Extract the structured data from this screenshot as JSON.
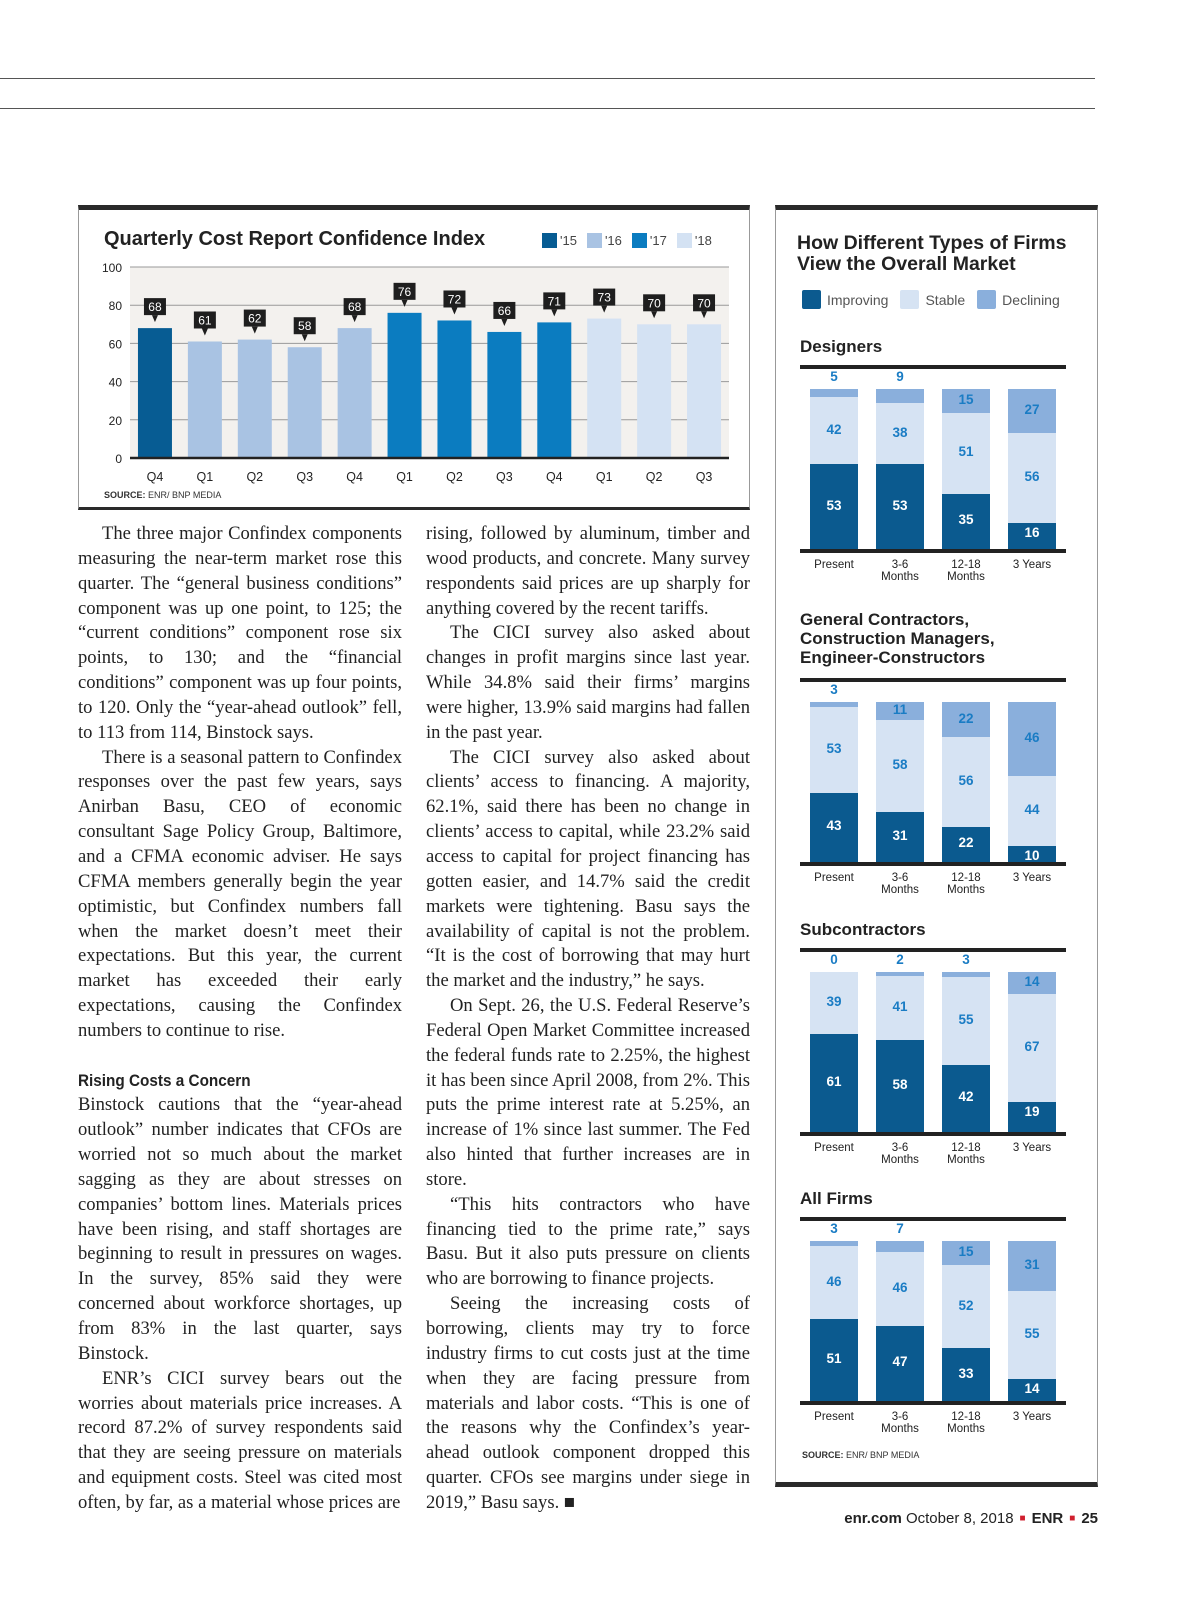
{
  "main_chart": {
    "title": "Quarterly Cost Report Confidence Index",
    "legend": [
      {
        "label": "'15",
        "color": "#075c93"
      },
      {
        "label": "'16",
        "color": "#a9c3e3"
      },
      {
        "label": "'17",
        "color": "#0b7cc0"
      },
      {
        "label": "'18",
        "color": "#d4e2f3"
      }
    ],
    "source_label": "SOURCE:",
    "source": "ENR/ BNP MEDIA"
  },
  "chart_data": [
    {
      "type": "bar",
      "title": "Quarterly Cost Report Confidence Index",
      "categories": [
        "Q4",
        "Q1",
        "Q2",
        "Q3",
        "Q4",
        "Q1",
        "Q2",
        "Q3",
        "Q4",
        "Q1",
        "Q2",
        "Q3"
      ],
      "years": [
        "'15",
        "'16",
        "'16",
        "'16",
        "'16",
        "'17",
        "'17",
        "'17",
        "'17",
        "'18",
        "'18",
        "'18"
      ],
      "values": [
        68,
        61,
        62,
        58,
        68,
        76,
        72,
        66,
        71,
        73,
        70,
        70
      ],
      "ylim": [
        0,
        100
      ],
      "yticks": [
        0,
        20,
        40,
        60,
        80,
        100
      ],
      "grid": true,
      "legend_position": "top-right"
    },
    {
      "type": "stacked-bar",
      "title": "How Different Types of Firms View the Overall Market",
      "categories": [
        "Present",
        "3-6 Months",
        "12-18 Months",
        "3 Years"
      ],
      "series_names": [
        "Improving",
        "Stable",
        "Declining"
      ],
      "colors": {
        "Improving": "#0b5a8f",
        "Stable": "#d6e3f3",
        "Declining": "#8aafdc"
      },
      "groups": [
        {
          "name": "Designers",
          "improving": [
            53,
            53,
            35,
            16
          ],
          "stable": [
            42,
            38,
            51,
            56
          ],
          "declining": [
            5,
            9,
            15,
            27
          ]
        },
        {
          "name": "General Contractors, Construction Managers, Engineer-Constructors",
          "improving": [
            43,
            31,
            22,
            10
          ],
          "stable": [
            53,
            58,
            56,
            44
          ],
          "declining": [
            3,
            11,
            22,
            46
          ]
        },
        {
          "name": "Subcontractors",
          "improving": [
            61,
            58,
            42,
            19
          ],
          "stable": [
            39,
            41,
            55,
            67
          ],
          "declining": [
            0,
            2,
            3,
            14
          ]
        },
        {
          "name": "All Firms",
          "improving": [
            51,
            47,
            33,
            14
          ],
          "stable": [
            46,
            46,
            52,
            55
          ],
          "declining": [
            3,
            7,
            15,
            31
          ]
        }
      ],
      "legend_position": "top"
    }
  ],
  "side": {
    "title_line1": "How Different Types of Firms",
    "title_line2": "View the Overall Market",
    "legend": [
      "Improving",
      "Stable",
      "Declining"
    ],
    "x_labels": [
      [
        "Present",
        ""
      ],
      [
        "3-6",
        "Months"
      ],
      [
        "12-18",
        "Months"
      ],
      [
        "3 Years",
        ""
      ]
    ],
    "section_titles": [
      "Designers",
      "General Contractors,\nConstruction Managers,\nEngineer-Constructors",
      "Subcontractors",
      "All Firms"
    ],
    "source_label": "SOURCE:",
    "source": "ENR/ BNP MEDIA"
  },
  "article": {
    "col1": [
      "The three major Confindex components measuring the near-term market rose this quarter. The “general business conditions” component was up one point, to 125; the “current conditions” component rose six points, to 130; and the “financial conditions” component was up four points, to 120. Only the “year-ahead outlook” fell, to 113 from 114, Binstock says.",
      "There is a seasonal pattern to Confindex responses over the past few years, says Anirban Basu, CEO of economic consultant Sage Policy Group, Baltimore, and a CFMA economic adviser. He says CFMA members generally begin the year optimistic, but Confindex numbers fall when the market doesn’t meet their expectations. But this year, the current market has exceeded their early expectations, causing the Confindex numbers to continue to rise."
    ],
    "subhead": "Rising Costs a Concern",
    "col1b": [
      "Binstock cautions that the “year-ahead outlook” number indicates that CFOs are worried not so much about the market sagging as they are about stresses on companies’ bottom lines. Materials prices have been rising, and staff shortages are beginning to result in pressures on wages. In the survey, 85% said they were concerned about workforce shortages, up from 83% in the last quarter, says Binstock.",
      "ENR’s CICI survey bears out the worries about materials price increases. A record 87.2% of survey respondents said that they are seeing pressure on materials and equipment costs. Steel was cited most often, by far, as a material whose prices are"
    ],
    "col2": [
      "rising, followed by aluminum, timber and wood products, and concrete. Many survey respondents said prices are up sharply for anything covered by the recent tariffs.",
      "The CICI survey also asked about changes in profit margins since last year. While 34.8% said their firms’ margins were higher, 13.9% said margins had fallen in the past year.",
      "The CICI survey also asked about clients’ access to financing. A majority, 62.1%, said there has been no change in clients’ access to capital, while 23.2% said access to capital for project financing has gotten easier, and 14.7% said the credit markets were tightening. Basu says the availability of capital is not the problem. “It is the cost of borrowing that may hurt the market and the industry,” he says.",
      "On Sept. 26, the U.S. Federal Reserve’s Federal Open Market Committee increased the federal funds rate to 2.25%, the highest it has been since April 2008, from 2%. This puts the prime interest rate at 5.25%, an increase of 1% since last summer. The Fed also hinted that further increases are in store.",
      "“This hits contractors who have financing tied to the prime rate,” says Basu. But it also puts pressure on clients who are borrowing to finance projects.",
      "Seeing the increasing costs of borrowing, clients may try to force industry firms to cut costs just at the time when they are facing pressure from materials and labor costs. “This is one of the reasons why the Confindex’s year-ahead outlook component dropped this quarter. CFOs see margins under siege in 2019,” Basu says. ■"
    ]
  },
  "footer": {
    "site": "enr.com",
    "date": "October 8, 2018",
    "brand": "ENR",
    "page": "25",
    "accent": "#d0202e"
  }
}
